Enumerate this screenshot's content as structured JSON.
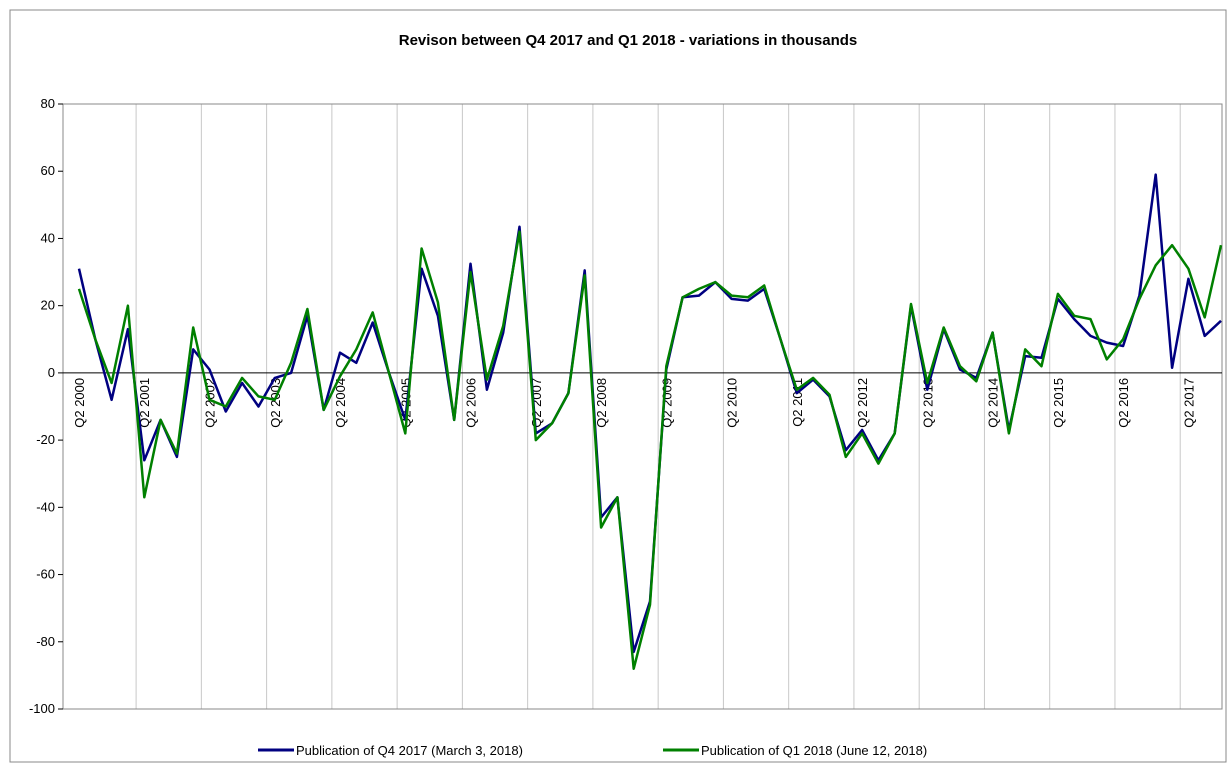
{
  "chart_data": {
    "type": "line",
    "title": "Revison between Q4 2017 and Q1 2018 - variations in thousands",
    "categories": [
      "Q2 2000",
      null,
      null,
      null,
      "Q2 2001",
      null,
      null,
      null,
      "Q2 2002",
      null,
      null,
      null,
      "Q2 2003",
      null,
      null,
      null,
      "Q2 2004",
      null,
      null,
      null,
      "Q2 2005",
      null,
      null,
      null,
      "Q2 2006",
      null,
      null,
      null,
      "Q2 2007",
      null,
      null,
      null,
      "Q2 2008",
      null,
      null,
      null,
      "Q2 2009",
      null,
      null,
      null,
      "Q2 2010",
      null,
      null,
      null,
      "Q2 2011",
      null,
      null,
      null,
      "Q2 2012",
      null,
      null,
      null,
      "Q2 2013",
      null,
      null,
      null,
      "Q2 2014",
      null,
      null,
      null,
      "Q2 2015",
      null,
      null,
      null,
      "Q2 2016",
      null,
      null,
      null,
      "Q2 2017",
      null,
      null
    ],
    "series": [
      {
        "name": "Publication of Q4 2017 (March 3, 2018)",
        "color": "#000080",
        "values": [
          31,
          10,
          -8,
          13,
          -26,
          -14,
          -25,
          7,
          1,
          -11.5,
          -3,
          -10,
          -1.5,
          0,
          17,
          -11,
          6,
          3,
          15,
          0,
          -14,
          31,
          17,
          -14,
          32.5,
          -5,
          12,
          43.5,
          -18,
          -15,
          -6,
          30.5,
          -43,
          -37,
          -83,
          -68,
          1,
          22.5,
          23,
          27,
          22,
          21.5,
          25,
          10,
          -6,
          -2,
          -7,
          -23,
          -17,
          -26,
          -18,
          20,
          -5,
          13,
          1,
          -1.5,
          12,
          -17,
          5,
          4.5,
          22,
          16,
          11,
          9,
          8,
          23,
          59,
          1.5,
          28,
          11,
          15.5
        ]
      },
      {
        "name": "Publication of Q1 2018 (June 12, 2018)",
        "color": "#008000",
        "values": [
          25,
          10,
          -3,
          20,
          -37,
          -14,
          -24,
          13.5,
          -8,
          -10,
          -1.5,
          -7,
          -8,
          3,
          19,
          -11,
          -1,
          7,
          18,
          0,
          -18,
          37,
          21,
          -14,
          30,
          -2,
          14,
          42,
          -20,
          -15,
          -6,
          29,
          -46,
          -37,
          -88,
          -69,
          2,
          22.5,
          25,
          27,
          23,
          22.5,
          26,
          10,
          -5,
          -1.5,
          -6.5,
          -25,
          -18,
          -27,
          -18,
          20.5,
          -3,
          13.5,
          2,
          -2.5,
          12,
          -18,
          7,
          2,
          23.5,
          17,
          16,
          4,
          10,
          22,
          32,
          38,
          31,
          16.5,
          38
        ]
      }
    ],
    "ylim": [
      -100,
      80
    ],
    "yticks": [
      80,
      60,
      40,
      20,
      0,
      -20,
      -40,
      -60,
      -80,
      -100
    ]
  }
}
